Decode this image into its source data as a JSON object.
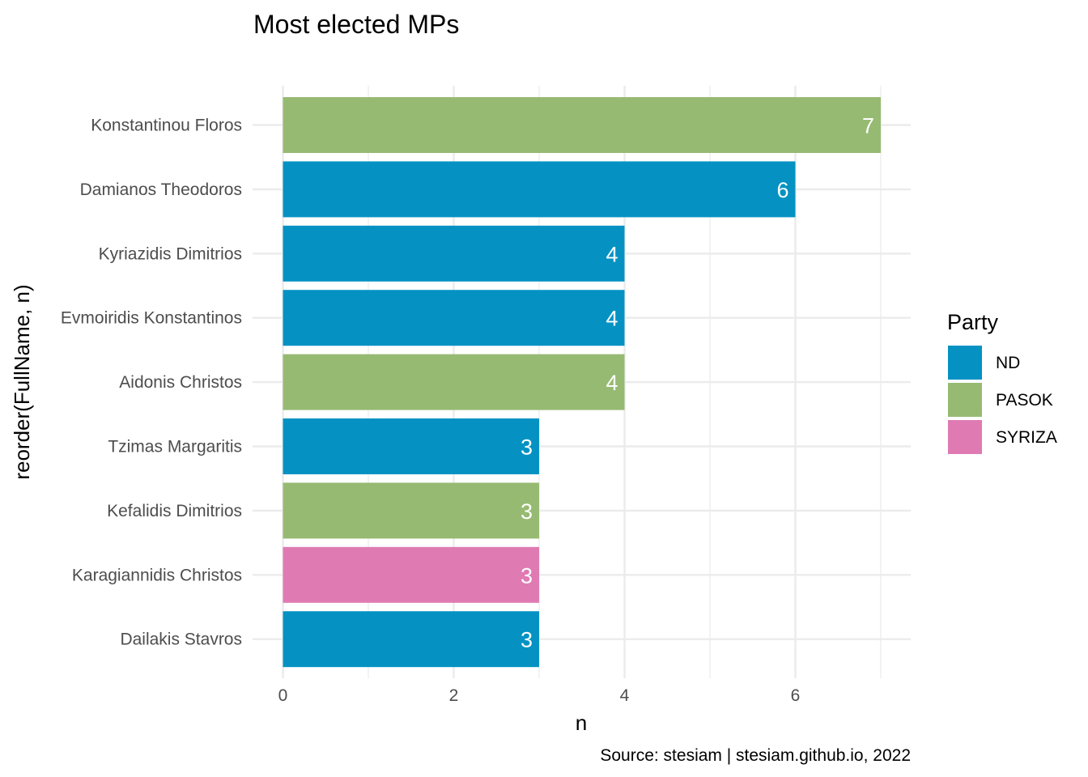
{
  "chart_data": {
    "type": "bar",
    "orientation": "horizontal",
    "title": "Most elected MPs",
    "xlabel": "n",
    "ylabel": "reorder(FullName, n)",
    "caption": "Source: stesiam | stesiam.github.io, 2022",
    "xlim": [
      0,
      7.35
    ],
    "x_ticks": [
      0,
      2,
      4,
      6
    ],
    "grid": true,
    "categories": [
      "Konstantinou Floros",
      "Damianos Theodoros",
      "Kyriazidis Dimitrios",
      "Evmoiridis Konstantinos",
      "Aidonis Christos",
      "Tzimas Margaritis",
      "Kefalidis Dimitrios",
      "Karagiannidis Christos",
      "Dailakis Stavros"
    ],
    "values": [
      7,
      6,
      4,
      4,
      4,
      3,
      3,
      3,
      3
    ],
    "party": [
      "PASOK",
      "ND",
      "ND",
      "ND",
      "PASOK",
      "ND",
      "PASOK",
      "SYRIZA",
      "ND"
    ],
    "legend": {
      "title": "Party",
      "position": "right",
      "entries": [
        {
          "name": "ND",
          "color": "#0592c3"
        },
        {
          "name": "PASOK",
          "color": "#97ba72"
        },
        {
          "name": "SYRIZA",
          "color": "#e07ab3"
        }
      ]
    }
  }
}
